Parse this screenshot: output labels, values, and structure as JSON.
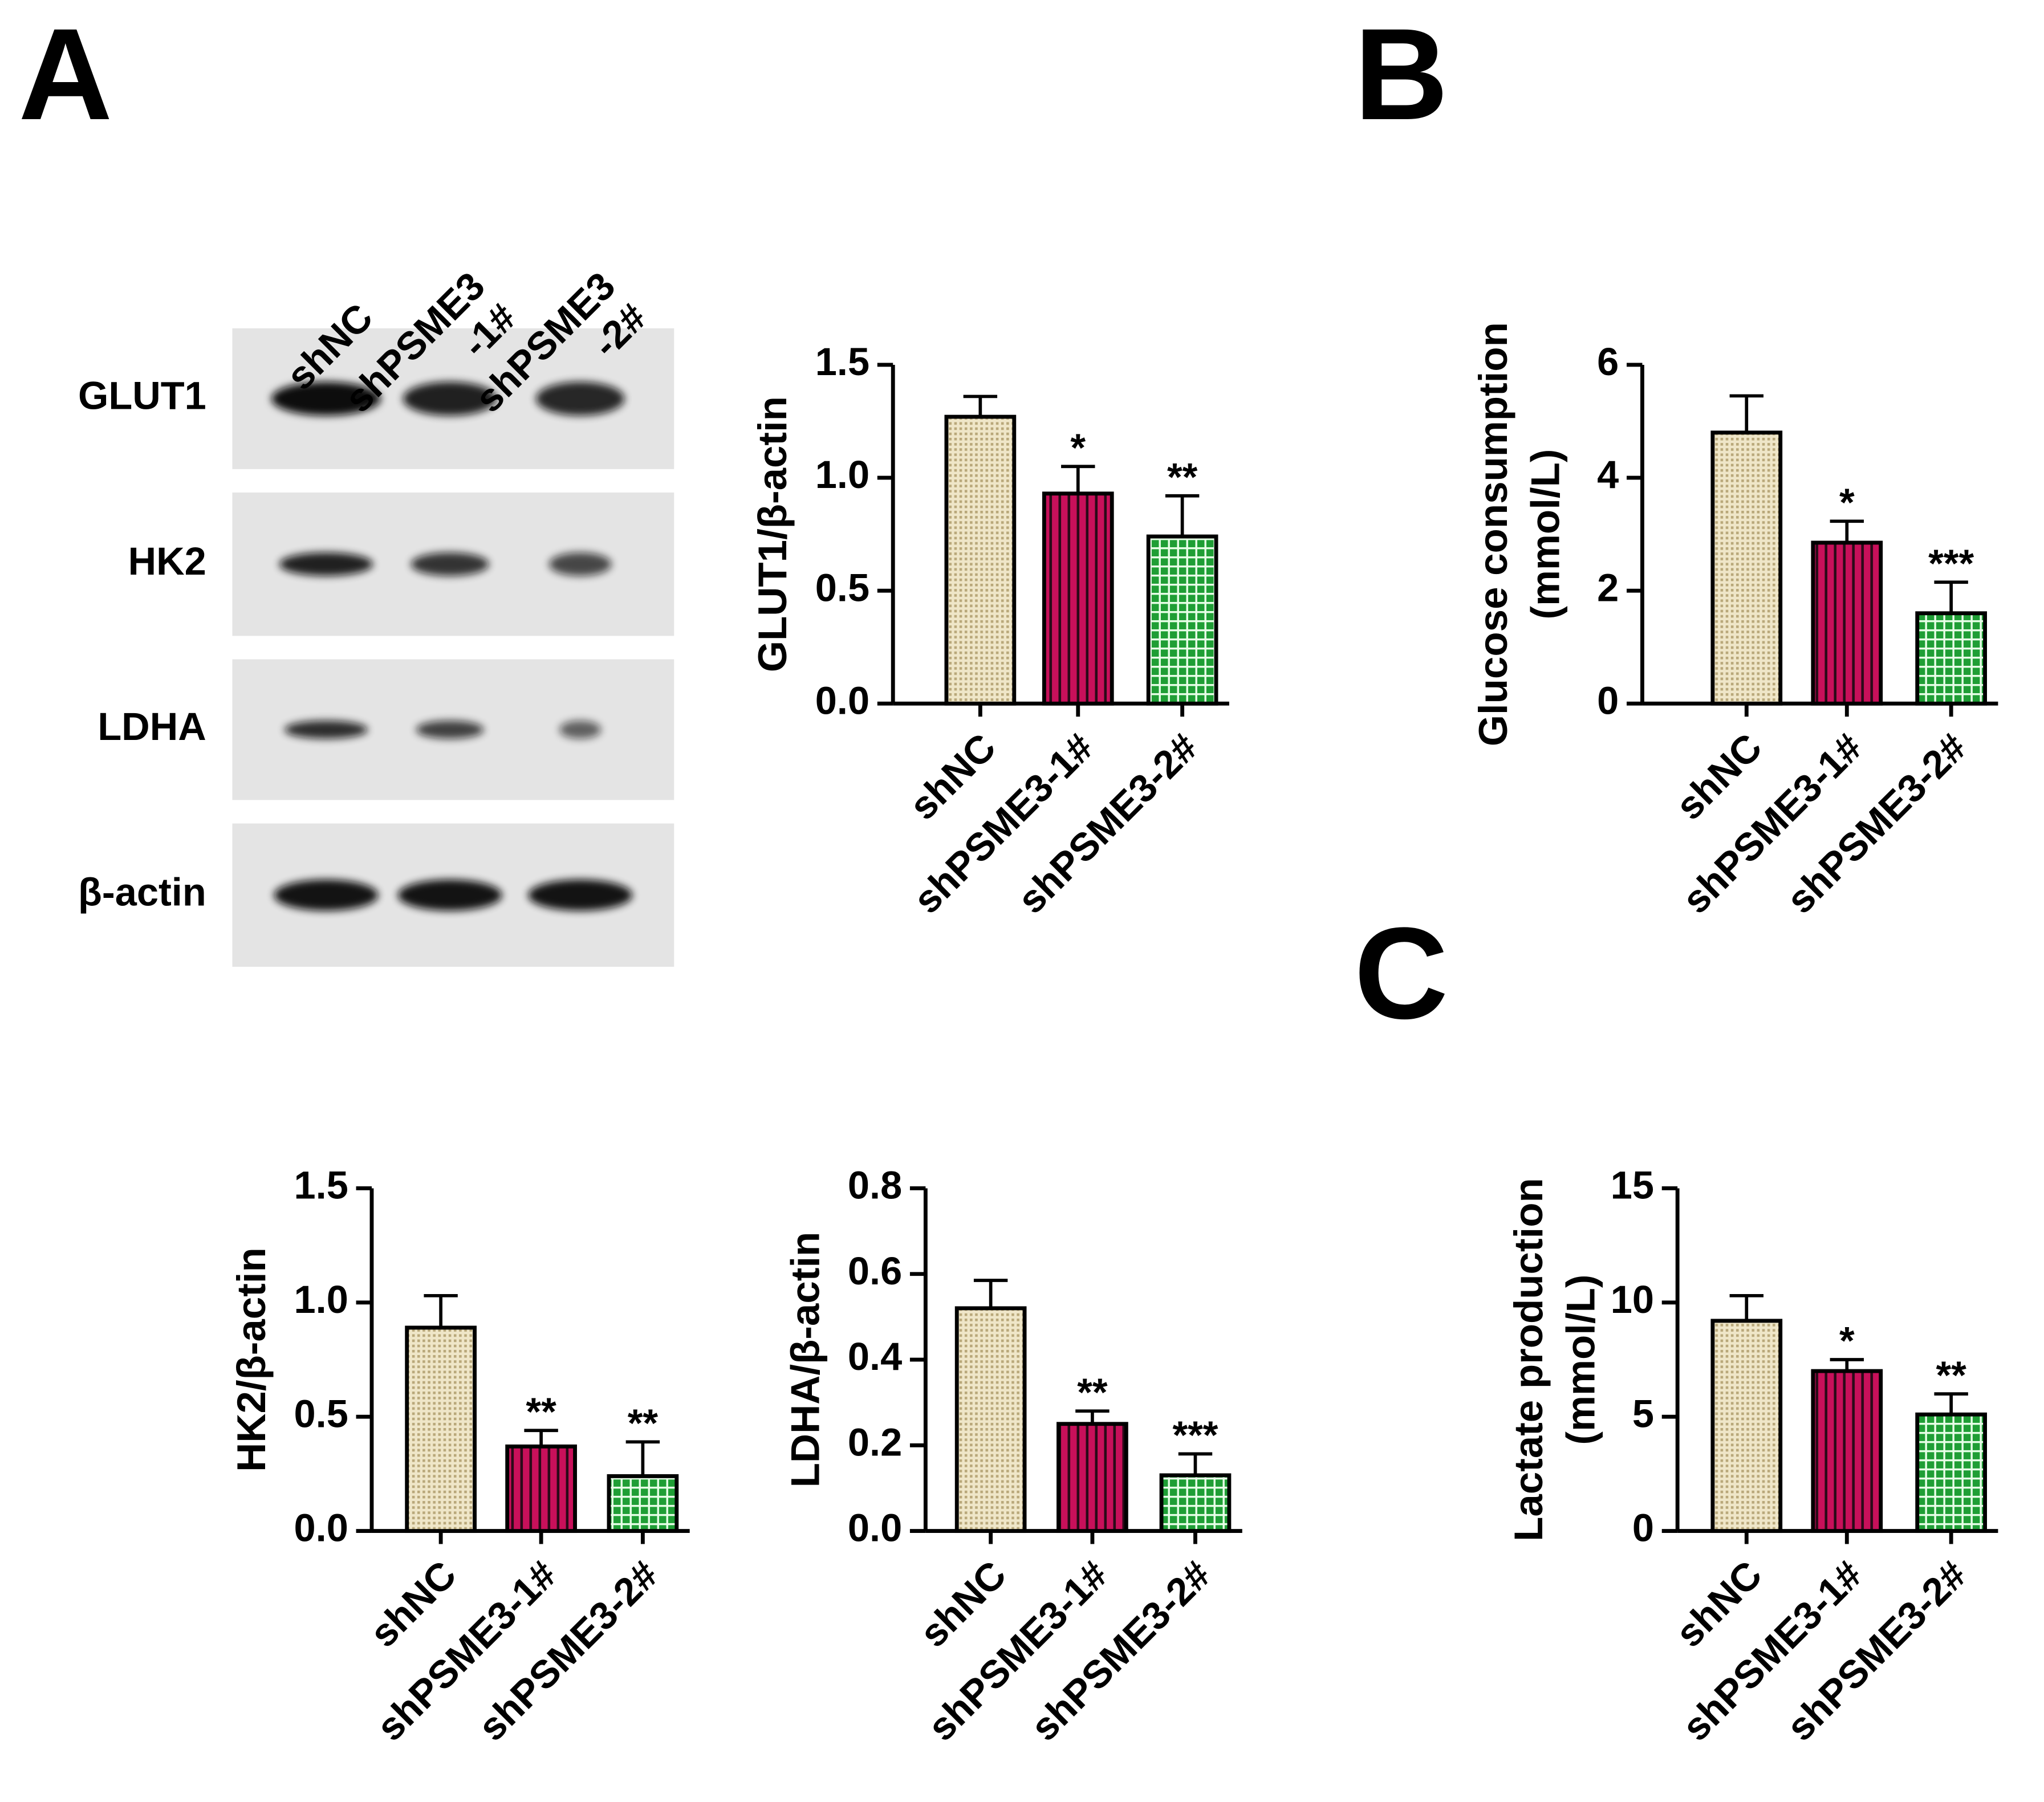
{
  "panels": [
    "A",
    "B",
    "C"
  ],
  "blot": {
    "lanes": [
      [
        "shNC"
      ],
      [
        "shPSME3",
        "-1#"
      ],
      [
        "shPSME3",
        "-2#"
      ]
    ],
    "proteins": [
      "GLUT1",
      "HK2",
      "LDHA",
      "β-actin"
    ]
  },
  "chart_data": [
    {
      "type": "bar",
      "ylabel": [
        "GLUT1/β-actin"
      ],
      "categories": [
        "shNC",
        "shPSME3-1#",
        "shPSME3-2#"
      ],
      "values": [
        1.27,
        0.93,
        0.74
      ],
      "errors": [
        0.09,
        0.12,
        0.18
      ],
      "annotations": [
        null,
        "*",
        "**"
      ],
      "colors": [
        "#e6dab0",
        "#c8105a",
        "#1f9e35"
      ],
      "ylim": [
        0,
        1.5
      ],
      "yticks": [
        {
          "value": 0,
          "label": "0.0"
        },
        0.5,
        {
          "value": 1,
          "label": "1.0"
        },
        1.5
      ]
    },
    {
      "type": "bar",
      "ylabel": [
        "Glucose consumption",
        "(mmol/L)"
      ],
      "categories": [
        "shNC",
        "shPSME3-1#",
        "shPSME3-2#"
      ],
      "values": [
        4.8,
        2.85,
        1.6
      ],
      "errors": [
        0.65,
        0.38,
        0.55
      ],
      "annotations": [
        null,
        "*",
        "***"
      ],
      "colors": [
        "#e6dab0",
        "#c8105a",
        "#1f9e35"
      ],
      "ylim": [
        0,
        6
      ],
      "yticks": [
        0,
        2,
        4,
        6
      ]
    },
    {
      "type": "bar",
      "ylabel": [
        "HK2/β-actin"
      ],
      "categories": [
        "shNC",
        "shPSME3-1#",
        "shPSME3-2#"
      ],
      "values": [
        0.89,
        0.37,
        0.24
      ],
      "errors": [
        0.14,
        0.07,
        0.15
      ],
      "annotations": [
        null,
        "**",
        "**"
      ],
      "colors": [
        "#e6dab0",
        "#c8105a",
        "#1f9e35"
      ],
      "ylim": [
        0,
        1.5
      ],
      "yticks": [
        {
          "value": 0,
          "label": "0.0"
        },
        0.5,
        {
          "value": 1,
          "label": "1.0"
        },
        1.5
      ]
    },
    {
      "type": "bar",
      "ylabel": [
        "LDHA/β-actin"
      ],
      "categories": [
        "shNC",
        "shPSME3-1#",
        "shPSME3-2#"
      ],
      "values": [
        0.52,
        0.25,
        0.13
      ],
      "errors": [
        0.065,
        0.03,
        0.05
      ],
      "annotations": [
        null,
        "**",
        "***"
      ],
      "colors": [
        "#e6dab0",
        "#c8105a",
        "#1f9e35"
      ],
      "ylim": [
        0,
        0.8
      ],
      "yticks": [
        {
          "value": 0,
          "label": "0.0"
        },
        0.2,
        0.4,
        0.6,
        0.8
      ]
    },
    {
      "type": "bar",
      "ylabel": [
        "Lactate production",
        "(mmol/L)"
      ],
      "categories": [
        "shNC",
        "shPSME3-1#",
        "shPSME3-2#"
      ],
      "values": [
        9.2,
        7.0,
        5.1
      ],
      "errors": [
        1.1,
        0.5,
        0.9
      ],
      "annotations": [
        null,
        "*",
        "**"
      ],
      "colors": [
        "#e6dab0",
        "#c8105a",
        "#1f9e35"
      ],
      "ylim": [
        0,
        15
      ],
      "yticks": [
        0,
        5,
        10,
        15
      ]
    }
  ]
}
